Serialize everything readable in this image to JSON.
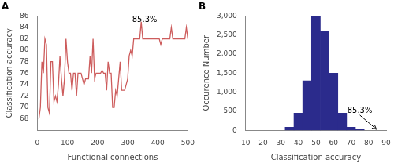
{
  "chart_data": [
    {
      "type": "line",
      "title": "A",
      "xlabel": "Functional connections",
      "ylabel": "Classification accuracy",
      "xlim": [
        0,
        500
      ],
      "ylim": [
        66,
        86
      ],
      "xticks": [
        0,
        100,
        200,
        300,
        400,
        500
      ],
      "yticks": [
        68,
        70,
        72,
        74,
        76,
        78,
        80,
        82,
        84,
        86
      ],
      "color": "#cd5c5c",
      "grid": false,
      "x": [
        5,
        10,
        15,
        20,
        25,
        30,
        35,
        40,
        45,
        50,
        55,
        60,
        65,
        70,
        75,
        80,
        85,
        90,
        95,
        100,
        105,
        110,
        115,
        120,
        125,
        130,
        135,
        140,
        145,
        150,
        155,
        160,
        165,
        170,
        175,
        180,
        185,
        190,
        195,
        200,
        205,
        210,
        215,
        220,
        225,
        230,
        235,
        240,
        245,
        250,
        255,
        260,
        265,
        270,
        275,
        280,
        285,
        290,
        295,
        300,
        305,
        310,
        315,
        320,
        325,
        330,
        335,
        340,
        345,
        350,
        355,
        360,
        365,
        370,
        375,
        380,
        385,
        390,
        395,
        400,
        405,
        410,
        415,
        420,
        425,
        430,
        435,
        440,
        445,
        450,
        455,
        460,
        465,
        470,
        475,
        480,
        485,
        490,
        495,
        500
      ],
      "values": [
        68,
        70,
        78,
        76,
        82,
        81,
        70,
        69,
        78,
        78,
        71,
        72,
        71,
        74,
        79,
        75,
        72,
        75,
        82,
        78,
        76,
        76,
        73,
        76,
        76,
        72,
        76,
        76,
        76,
        75,
        74,
        75,
        75,
        75,
        79,
        76,
        82,
        75,
        76,
        76,
        76,
        76,
        76.5,
        76,
        76,
        73,
        78,
        76,
        76,
        70,
        70,
        73,
        72,
        75,
        78,
        73,
        73,
        73,
        74,
        75,
        79,
        80,
        79,
        82,
        82,
        82,
        82,
        82,
        85,
        82,
        82,
        82,
        82,
        82,
        82,
        82,
        82,
        82,
        82,
        82,
        82,
        81,
        82,
        82,
        82,
        82,
        82,
        82,
        84,
        82,
        82,
        82,
        82,
        82,
        82,
        82,
        82,
        82,
        84,
        82
      ],
      "annotations": [
        {
          "text": "85.3%",
          "x": 315,
          "y": 85.0
        }
      ]
    },
    {
      "type": "histogram",
      "title": "B",
      "xlabel": "Classification accuracy",
      "ylabel": "Occurence Number",
      "xlim": [
        10,
        90
      ],
      "ylim": [
        0,
        3000
      ],
      "xticks": [
        10,
        20,
        30,
        40,
        50,
        60,
        70,
        80,
        90
      ],
      "yticks": [
        0,
        500,
        1000,
        1500,
        2000,
        2500,
        3000
      ],
      "color": "#2b2b8c",
      "grid": false,
      "bins": [
        32.5,
        37.5,
        42.5,
        47.5,
        52.5,
        57.5,
        62.5,
        67.5,
        72.5,
        77.5
      ],
      "values": [
        80,
        450,
        1300,
        3000,
        2600,
        1500,
        450,
        80,
        20
      ],
      "annotations": [
        {
          "text": "85.3%",
          "x": 75,
          "y": 460,
          "arrow_x": 84.5,
          "arrow_y": 25
        }
      ]
    }
  ]
}
